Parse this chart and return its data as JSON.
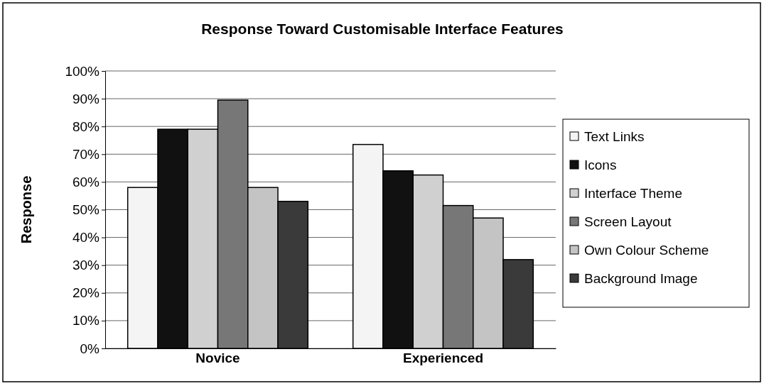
{
  "chart_data": {
    "type": "bar",
    "title": "Response Toward Customisable Interface Features",
    "ylabel": "Response",
    "categories": [
      "Novice",
      "Experienced"
    ],
    "series": [
      {
        "name": "Text Links",
        "color": "#f4f4f4",
        "values": [
          58,
          73.5
        ]
      },
      {
        "name": "Icons",
        "color": "#111111",
        "values": [
          79,
          64
        ]
      },
      {
        "name": "Interface Theme",
        "color": "#d0d0d0",
        "values": [
          79,
          62.5
        ]
      },
      {
        "name": "Screen Layout",
        "color": "#777777",
        "values": [
          89.5,
          51.5
        ]
      },
      {
        "name": "Own Colour Scheme",
        "color": "#c4c4c4",
        "values": [
          58,
          47
        ]
      },
      {
        "name": "Background Image",
        "color": "#3a3a3a",
        "values": [
          53,
          32
        ]
      }
    ],
    "ylim": [
      0,
      100
    ],
    "yticks": [
      {
        "value": 0,
        "label": "0%"
      },
      {
        "value": 10,
        "label": "10%"
      },
      {
        "value": 20,
        "label": "20%"
      },
      {
        "value": 30,
        "label": "30%"
      },
      {
        "value": 40,
        "label": "40%"
      },
      {
        "value": 50,
        "label": "50%"
      },
      {
        "value": 60,
        "label": "60%"
      },
      {
        "value": 70,
        "label": "70%"
      },
      {
        "value": 80,
        "label": "80%"
      },
      {
        "value": 90,
        "label": "90%"
      },
      {
        "value": 100,
        "label": "100%"
      }
    ],
    "grid": "y",
    "legend": "right"
  }
}
